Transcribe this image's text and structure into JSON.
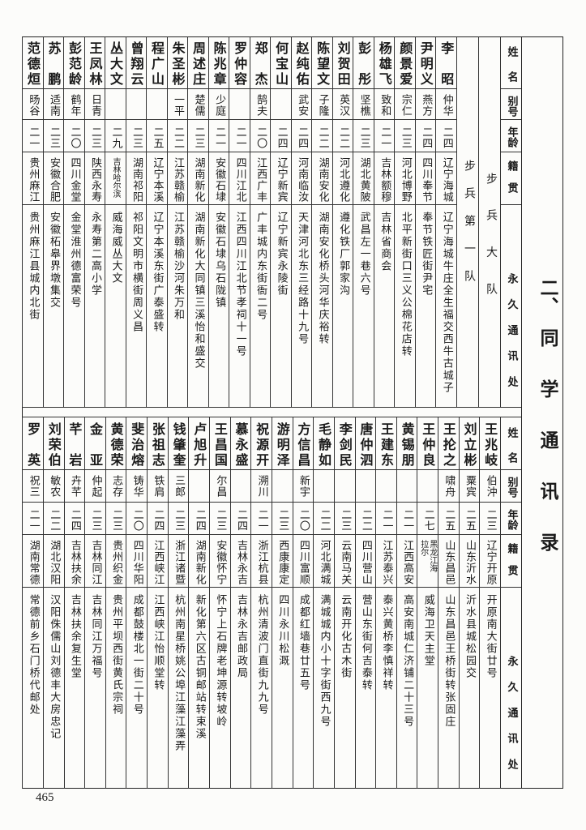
{
  "title_number": "二、",
  "title_text": "同学通讯录",
  "page_number": "465",
  "headers": {
    "name": "姓名",
    "alias": "别号",
    "age": "年龄",
    "native_place": "籍贯",
    "address": "永久通讯处"
  },
  "top_section": {
    "unit_battalion": "步兵大队",
    "unit_company": "步兵第一队",
    "rows": [
      {
        "name": "李昭",
        "alias": "仲华",
        "age": "二四",
        "native_place": "辽宁海城",
        "address": "辽宁海城牛庄全生福交西牛古城子"
      },
      {
        "name": "尹明义",
        "alias": "燕方",
        "age": "二四",
        "native_place": "四川奉节",
        "address": "奉节铁匠街尹宅"
      },
      {
        "name": "颜景爱",
        "alias": "宗仁",
        "age": "二三",
        "native_place": "河北博野",
        "address": "北平新街口三义公棉花店转"
      },
      {
        "name": "杨雄飞",
        "alias": "致和",
        "age": "二一",
        "native_place": "吉林额穆",
        "address": "吉林省商会"
      },
      {
        "name": "彭彤",
        "alias": "坚樵",
        "age": "二三",
        "native_place": "湖北黄陂",
        "address": "武昌左一巷六号"
      },
      {
        "name": "刘贺田",
        "alias": "英汉",
        "age": "二二",
        "native_place": "河北遵化",
        "address": "遵化铁厂郭家沟"
      },
      {
        "name": "陈望文",
        "alias": "子隆",
        "age": "二二",
        "native_place": "湖南安化",
        "address": "湖南安化桥头河华庆裕转"
      },
      {
        "name": "赵纯佑",
        "alias": "武安",
        "age": "二四",
        "native_place": "河南临汝",
        "address": "天津河北东三经路十九号"
      },
      {
        "name": "何宝山",
        "alias": "",
        "age": "二四",
        "native_place": "辽宁新宾",
        "address": "辽宁新宾永陵街"
      },
      {
        "name": "郑杰",
        "alias": "鹄夫",
        "age": "二〇",
        "native_place": "江西广丰",
        "address": "广丰城内东街衙二号"
      },
      {
        "name": "罗仲容",
        "alias": "",
        "age": "二一",
        "native_place": "四川江北",
        "address": "江西四川江北节孝祠十一号"
      },
      {
        "name": "陈兆章",
        "alias": "少庭",
        "age": "二一",
        "native_place": "安徽石埭",
        "address": "安徽石埭乌石陇镇"
      },
      {
        "name": "周述庄",
        "alias": "楚儒",
        "age": "二三",
        "native_place": "湖南新化",
        "address": "湖南新化大同镇三溪怡和盛交"
      },
      {
        "name": "朱圣彬",
        "alias": "一平",
        "age": "二二",
        "native_place": "江苏赣榆",
        "address": "江苏赣榆沙河朱万和"
      },
      {
        "name": "程广山",
        "alias": "",
        "age": "二五",
        "native_place": "辽宁本溪",
        "address": "辽宁本溪东街广泰盛转"
      },
      {
        "name": "曾翔云",
        "alias": "",
        "age": "二三",
        "native_place": "湖南祁阳",
        "address": "祁阳文明市横街周义昌"
      },
      {
        "name": "丛大文",
        "alias": "",
        "age": "二九",
        "native_place": "吉林哈尔滨",
        "address": "威海威丛大文"
      },
      {
        "name": "王凤林",
        "alias": "日青",
        "age": "二三",
        "native_place": "陕西永寿",
        "address": "永寿第二高小学"
      },
      {
        "name": "彭范龄",
        "alias": "鹤年",
        "age": "二〇",
        "native_place": "四川金堂",
        "address": "金堂淮州德富荣号"
      },
      {
        "name": "苏鹏",
        "alias": "适南",
        "age": "二三",
        "native_place": "安徽合肥",
        "address": "安徽柘皋界墩集交"
      },
      {
        "name": "范德烜",
        "alias": "旸谷",
        "age": "二一",
        "native_place": "贵州麻江",
        "address": "贵州麻江县城内北街"
      }
    ]
  },
  "bottom_section": {
    "rows": [
      {
        "name": "王兆岐",
        "alias": "伯沖",
        "age": "二三",
        "native_place": "辽宁开原",
        "address": "开原南大街廿号"
      },
      {
        "name": "刘立彬",
        "alias": "粟宾",
        "age": "二五",
        "native_place": "山东沂水",
        "address": "沂水县城松园交"
      },
      {
        "name": "王抡之",
        "alias": "啸舟",
        "age": "二五",
        "native_place": "山东昌邑",
        "address": "山东昌邑王桥街转张固庄"
      },
      {
        "name": "王仲良",
        "alias": "",
        "age": "二七",
        "native_place": "黑龙江海拉尔",
        "address": "威海卫天主堂"
      },
      {
        "name": "黄锡朋",
        "alias": "",
        "age": "二一",
        "native_place": "江西高安",
        "address": "高安南城仁济铺二十三号"
      },
      {
        "name": "王建东",
        "alias": "",
        "age": "二一",
        "native_place": "江苏泰兴",
        "address": "泰兴黄桥李慎祥转"
      },
      {
        "name": "唐仲泗",
        "alias": "",
        "age": "二二",
        "native_place": "四川营山",
        "address": "营山东街何吉泰转"
      },
      {
        "name": "李剑民",
        "alias": "",
        "age": "二三",
        "native_place": "云南马关",
        "address": "云南开化古木街"
      },
      {
        "name": "毛静如",
        "alias": "",
        "age": "二二",
        "native_place": "河北满城",
        "address": "满城城内小十字街西九号"
      },
      {
        "name": "方信昌",
        "alias": "新宇",
        "age": "二〇",
        "native_place": "四川富顺",
        "address": "成都红墙巷廿五号"
      },
      {
        "name": "游明泽",
        "alias": "",
        "age": "二三",
        "native_place": "西康康定",
        "address": "四川永川松溉"
      },
      {
        "name": "祝源开",
        "alias": "溯川",
        "age": "二一",
        "native_place": "浙江杭县",
        "address": "杭州清波门直街九九号"
      },
      {
        "name": "慕永盛",
        "alias": "",
        "age": "二四",
        "native_place": "吉林永吉",
        "address": "吉林永吉邮政局"
      },
      {
        "name": "王昌国",
        "alias": "尔昌",
        "age": "二三",
        "native_place": "安徽怀宁",
        "address": "怀宁上石牌老坤源转坡岭"
      },
      {
        "name": "卢旭升",
        "alias": "",
        "age": "二四",
        "native_place": "湖南新化",
        "address": "新化第六区古铜邮站转束溪"
      },
      {
        "name": "钱肇奎",
        "alias": "三郎",
        "age": "二三",
        "native_place": "浙江诸暨",
        "address": "杭州南星桥姚公埠江藻江藻弄"
      },
      {
        "name": "张祖志",
        "alias": "铁肩",
        "age": "二四",
        "native_place": "江西峡江",
        "address": "江西峡江怡顺堂转"
      },
      {
        "name": "斐治熔",
        "alias": "铸华",
        "age": "二〇",
        "native_place": "四川华阳",
        "address": "成都鼓楼北一街二十号"
      },
      {
        "name": "黄德荣",
        "alias": "志存",
        "age": "二三",
        "native_place": "贵州织金",
        "address": "贵州平坝西街黄氏宗祠"
      },
      {
        "name": "金亚",
        "alias": "仲起",
        "age": "二三",
        "native_place": "吉林同江",
        "address": "吉林同江万福号"
      },
      {
        "name": "芊岩",
        "alias": "卉芊",
        "age": "二四",
        "native_place": "吉林扶余",
        "address": "吉林扶余复生堂"
      },
      {
        "name": "刘荣伯",
        "alias": "敏农",
        "age": "二二",
        "native_place": "湖北汉阳",
        "address": "汉阳侏儒山刘德丰大房忠记"
      },
      {
        "name": "罗英",
        "alias": "祝三",
        "age": "二一",
        "native_place": "湖南常德",
        "address": "常德前乡石门桥代邮处"
      }
    ]
  }
}
